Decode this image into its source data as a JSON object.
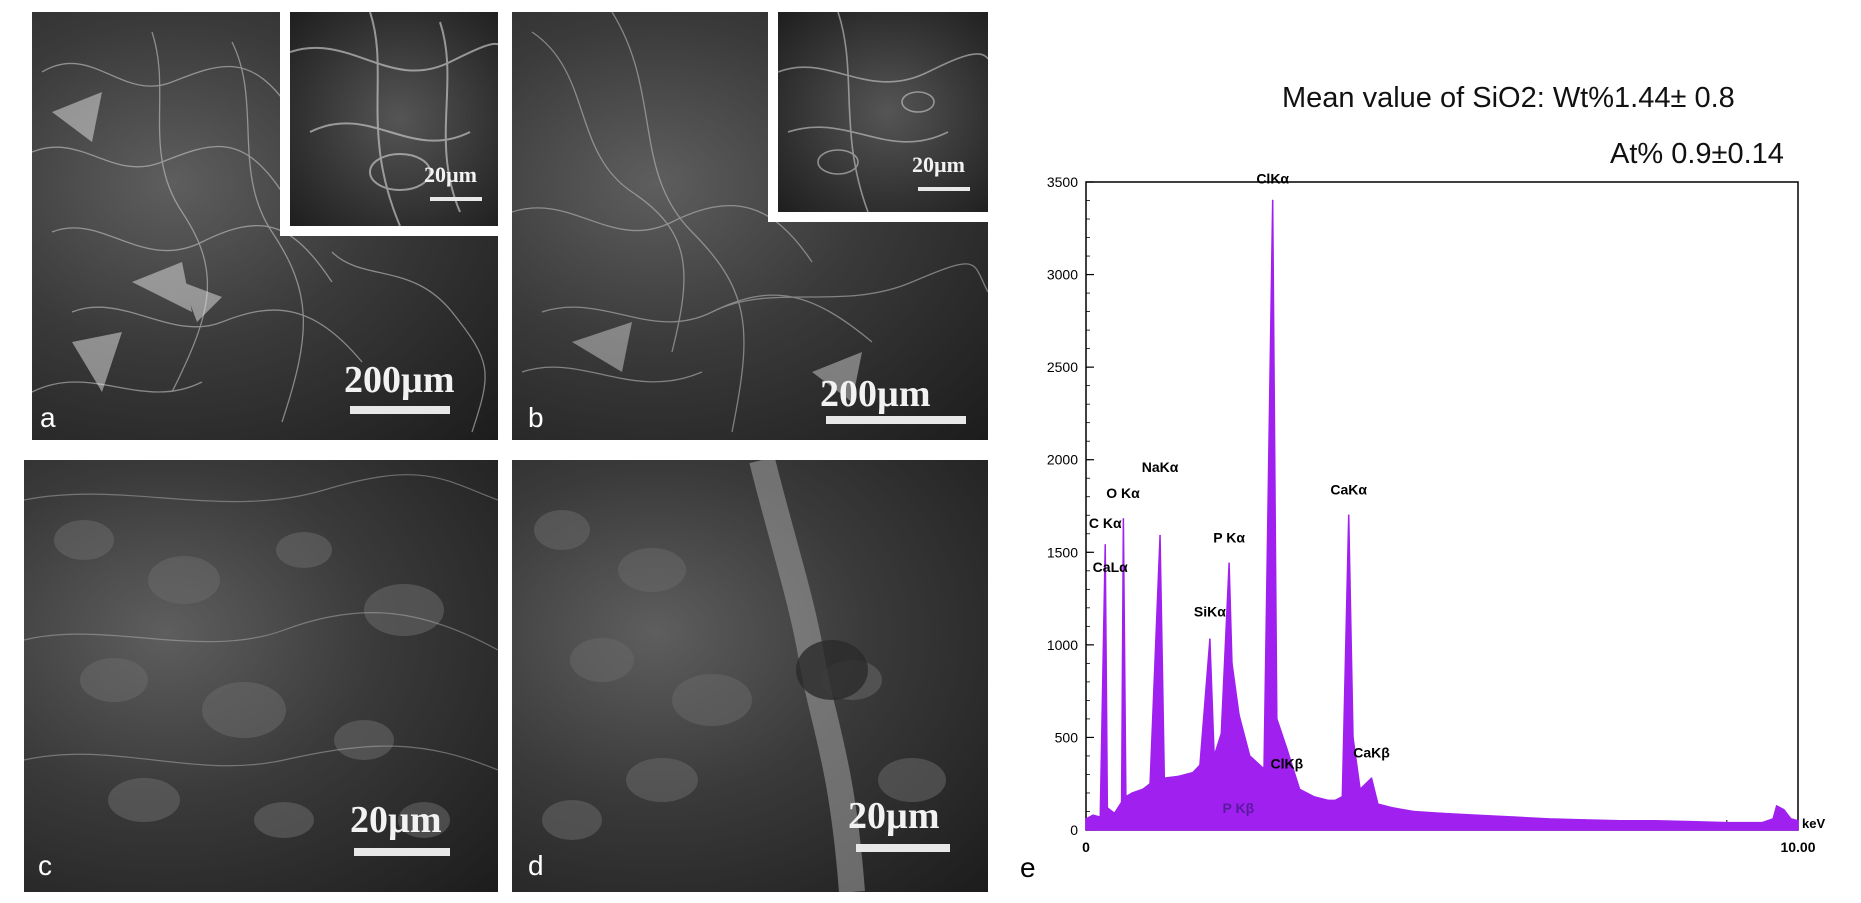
{
  "panels": {
    "a": {
      "letter": "a",
      "scale_main": "200µm",
      "scale_inset": "20µm"
    },
    "b": {
      "letter": "b",
      "scale_main": "200µm",
      "scale_inset": "20µm"
    },
    "c": {
      "letter": "c",
      "scale_main": "20µm"
    },
    "d": {
      "letter": "d",
      "scale_main": "20µm"
    },
    "e": {
      "letter": "e"
    }
  },
  "header": {
    "line1": "Mean value of SiO2: Wt%1.44± 0.8",
    "line2": "At% 0.9±0.14"
  },
  "colors": {
    "spectrum": "#a020f0",
    "axis": "#000000"
  },
  "chart_data": {
    "type": "area",
    "xlabel": "keV",
    "ylabel": "",
    "xlim": [
      0,
      10
    ],
    "ylim": [
      0,
      3500
    ],
    "y_ticks": [
      "0",
      "500",
      "1000",
      "1500",
      "2000",
      "2500",
      "3000",
      "3500"
    ],
    "x_tick_labels": [
      "0",
      "10.00"
    ],
    "grid": false,
    "series": [
      {
        "points": [
          [
            0.0,
            60
          ],
          [
            0.1,
            80
          ],
          [
            0.2,
            70
          ],
          [
            0.27,
            1540
          ],
          [
            0.3,
            120
          ],
          [
            0.4,
            90
          ],
          [
            0.5,
            150
          ],
          [
            0.525,
            1680
          ],
          [
            0.56,
            180
          ],
          [
            0.65,
            200
          ],
          [
            0.8,
            220
          ],
          [
            0.9,
            250
          ],
          [
            1.04,
            1590
          ],
          [
            1.1,
            280
          ],
          [
            1.3,
            290
          ],
          [
            1.5,
            310
          ],
          [
            1.6,
            350
          ],
          [
            1.74,
            1030
          ],
          [
            1.8,
            400
          ],
          [
            1.9,
            520
          ],
          [
            2.01,
            1440
          ],
          [
            2.05,
            900
          ],
          [
            2.15,
            620
          ],
          [
            2.3,
            400
          ],
          [
            2.5,
            330
          ],
          [
            2.622,
            3400
          ],
          [
            2.68,
            600
          ],
          [
            2.82,
            440
          ],
          [
            3.0,
            220
          ],
          [
            3.2,
            180
          ],
          [
            3.4,
            160
          ],
          [
            3.5,
            160
          ],
          [
            3.6,
            180
          ],
          [
            3.69,
            1700
          ],
          [
            3.75,
            500
          ],
          [
            3.85,
            220
          ],
          [
            4.01,
            280
          ],
          [
            4.1,
            140
          ],
          [
            4.3,
            120
          ],
          [
            4.6,
            100
          ],
          [
            5.0,
            90
          ],
          [
            5.5,
            80
          ],
          [
            6.0,
            70
          ],
          [
            6.5,
            60
          ],
          [
            7.0,
            55
          ],
          [
            7.5,
            50
          ],
          [
            8.0,
            50
          ],
          [
            8.5,
            45
          ],
          [
            9.0,
            40
          ],
          [
            9.5,
            40
          ],
          [
            9.65,
            60
          ],
          [
            9.7,
            130
          ],
          [
            9.8,
            110
          ],
          [
            9.9,
            60
          ],
          [
            10.0,
            50
          ]
        ]
      }
    ],
    "annotations": [
      {
        "text": "C Kα",
        "x": 0.27,
        "y": 1600
      },
      {
        "text": "CaLα",
        "x": 0.34,
        "y": 1360
      },
      {
        "text": "O Kα",
        "x": 0.52,
        "y": 1760
      },
      {
        "text": "NaKα",
        "x": 1.04,
        "y": 1900
      },
      {
        "text": "SiKα",
        "x": 1.74,
        "y": 1120
      },
      {
        "text": "P Kα",
        "x": 2.01,
        "y": 1520
      },
      {
        "text": "ClKα",
        "x": 2.622,
        "y": 3460
      },
      {
        "text": "ClKβ",
        "x": 2.82,
        "y": 300
      },
      {
        "text": "P Kβ",
        "x": 2.14,
        "y": 60
      },
      {
        "text": "CaKα",
        "x": 3.69,
        "y": 1780
      },
      {
        "text": "CaKβ",
        "x": 4.01,
        "y": 360
      }
    ]
  }
}
